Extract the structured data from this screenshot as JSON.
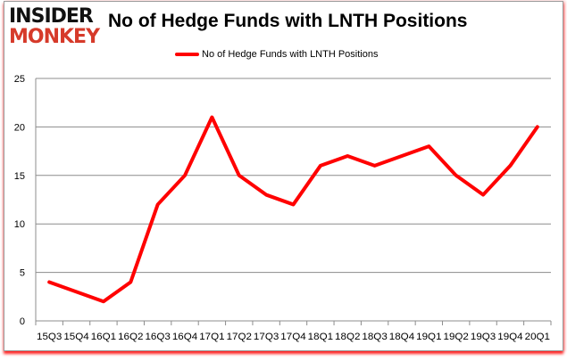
{
  "logo": {
    "line1": "INSIDER",
    "line2": "MONKEY"
  },
  "chart_data": {
    "type": "line",
    "title": "No of Hedge Funds with LNTH Positions",
    "xlabel": "",
    "ylabel": "",
    "categories": [
      "15Q3",
      "15Q4",
      "16Q1",
      "16Q2",
      "16Q3",
      "16Q4",
      "17Q1",
      "17Q2",
      "17Q3",
      "17Q4",
      "18Q1",
      "18Q2",
      "18Q3",
      "18Q4",
      "19Q1",
      "19Q2",
      "19Q3",
      "19Q4",
      "20Q1"
    ],
    "series": [
      {
        "name": "No of Hedge Funds with LNTH Positions",
        "color": "#ff0000",
        "values": [
          4,
          3,
          2,
          4,
          12,
          15,
          21,
          15,
          13,
          12,
          16,
          17,
          16,
          17,
          18,
          15,
          13,
          16,
          20
        ]
      }
    ],
    "ylim": [
      0,
      25
    ],
    "yticks": [
      0,
      5,
      10,
      15,
      20,
      25
    ],
    "grid": true,
    "legend_position": "top-center"
  }
}
